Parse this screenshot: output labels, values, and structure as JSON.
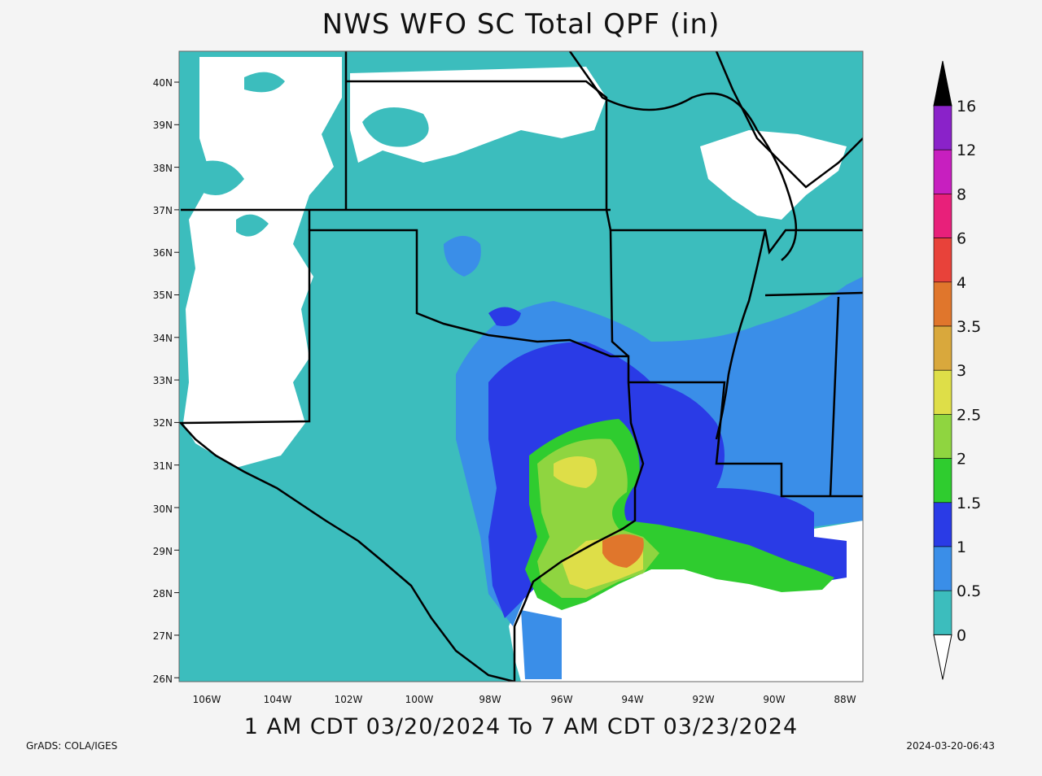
{
  "title": "NWS WFO SC Total QPF (in)",
  "valid_period": "1 AM CDT 03/20/2024 To 7 AM CDT 03/23/2024",
  "credit": "GrADS: COLA/IGES",
  "timestamp": "2024-03-20-06:43",
  "lat_labels": [
    "40N",
    "39N",
    "38N",
    "37N",
    "36N",
    "35N",
    "34N",
    "33N",
    "32N",
    "31N",
    "30N",
    "29N",
    "28N",
    "27N",
    "26N"
  ],
  "lon_labels": [
    "106W",
    "104W",
    "102W",
    "100W",
    "98W",
    "96W",
    "94W",
    "92W",
    "90W",
    "88W"
  ],
  "colorbar": {
    "labels": [
      "0",
      "0.5",
      "1",
      "1.5",
      "2",
      "2.5",
      "3",
      "3.5",
      "4",
      "6",
      "8",
      "12",
      "16"
    ],
    "colors": [
      "#3cbdbd",
      "#3a8ee8",
      "#2a3be6",
      "#2fcc2f",
      "#8fd540",
      "#dede48",
      "#d9a83c",
      "#e0762c",
      "#e8423a",
      "#e8207a",
      "#c71fbf",
      "#8a22c9",
      "#000000"
    ]
  },
  "region_colors": {
    "no_precip": "#ffffff",
    "trace": "#3cbdbd",
    "half_inch": "#3a8ee8",
    "one_inch": "#2a3be6",
    "inch_half": "#2fcc2f",
    "two_inch": "#8fd540",
    "two_half": "#dede48",
    "three_half": "#e0762c",
    "ocean": "#ffffff"
  }
}
